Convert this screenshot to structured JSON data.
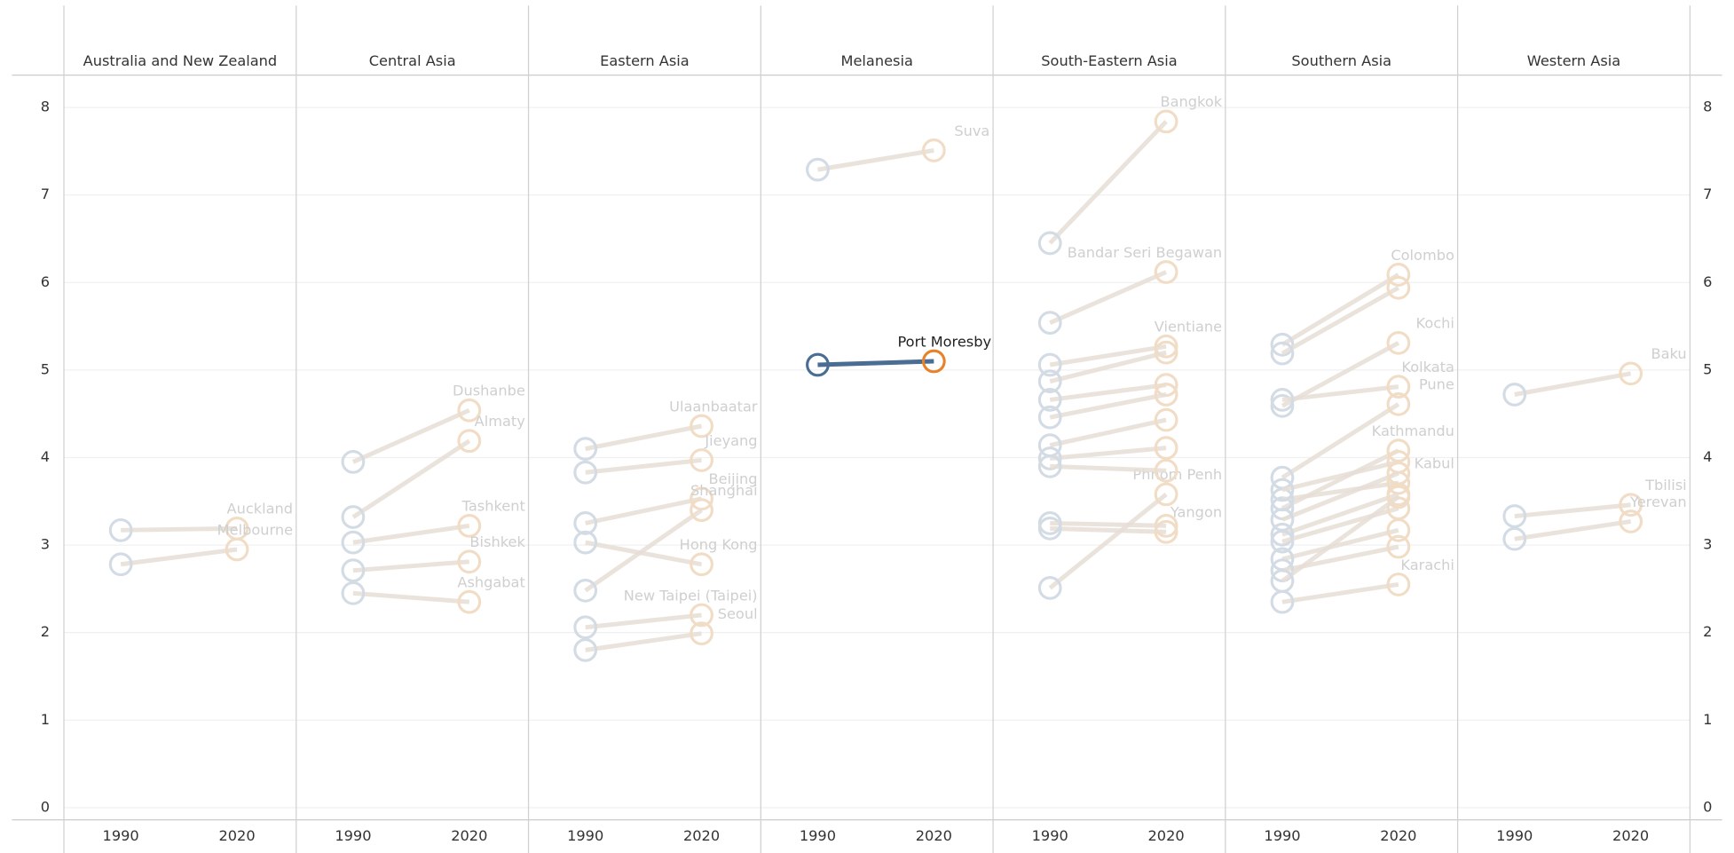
{
  "chart_data": {
    "type": "slope",
    "x": [
      "1990",
      "2020"
    ],
    "ylim": [
      -0.14,
      8.37
    ],
    "yticks": [
      0,
      1,
      2,
      3,
      4,
      5,
      6,
      7,
      8
    ],
    "grid": true,
    "highlight": "Port Moresby",
    "color_start": "#4a6d94",
    "color_end": "#e8822a",
    "faded_start": "#d3dbe4",
    "faded_end": "#f1dcc6",
    "panels": [
      {
        "name": "Australia and New Zealand",
        "series": [
          {
            "name": "Auckland",
            "values": [
              3.17,
              3.19
            ]
          },
          {
            "name": "Melbourne",
            "values": [
              2.78,
              2.95
            ]
          }
        ]
      },
      {
        "name": "Central Asia",
        "series": [
          {
            "name": "Dushanbe",
            "values": [
              3.95,
              4.54
            ]
          },
          {
            "name": "Almaty",
            "values": [
              3.32,
              4.19
            ]
          },
          {
            "name": "Tashkent",
            "values": [
              3.03,
              3.22
            ]
          },
          {
            "name": "Bishkek",
            "values": [
              2.71,
              2.81
            ]
          },
          {
            "name": "Ashgabat",
            "values": [
              2.45,
              2.35
            ]
          }
        ]
      },
      {
        "name": "Eastern Asia",
        "series": [
          {
            "name": "Ulaanbaatar",
            "values": [
              4.1,
              4.36
            ]
          },
          {
            "name": "Jieyang",
            "values": [
              3.83,
              3.97
            ]
          },
          {
            "name": "Beijing",
            "values": [
              3.25,
              3.53
            ]
          },
          {
            "name": "Shanghai",
            "values": [
              2.48,
              3.4
            ]
          },
          {
            "name": "Hong Kong",
            "values": [
              3.03,
              2.78
            ]
          },
          {
            "name": "New Taipei (Taipei)",
            "values": [
              2.06,
              2.2
            ]
          },
          {
            "name": "Seoul",
            "values": [
              1.8,
              1.99
            ]
          }
        ]
      },
      {
        "name": "Melanesia",
        "series": [
          {
            "name": "Suva",
            "values": [
              7.29,
              7.51
            ]
          },
          {
            "name": "Port Moresby",
            "values": [
              5.06,
              5.1
            ]
          }
        ]
      },
      {
        "name": "South-Eastern Asia",
        "series": [
          {
            "name": "Bangkok",
            "values": [
              6.45,
              7.84
            ]
          },
          {
            "name": "Bandar Seri Begawan",
            "values": [
              5.54,
              6.12
            ]
          },
          {
            "name": "Vientiane",
            "values": [
              5.06,
              5.27
            ]
          },
          {
            "name": "Phnom Penh",
            "values": [
              2.51,
              3.58
            ]
          },
          {
            "name": "Yangon",
            "values": [
              3.19,
              3.15
            ]
          },
          {
            "name": null,
            "values": [
              4.87,
              5.2
            ]
          },
          {
            "name": null,
            "values": [
              4.66,
              4.83
            ]
          },
          {
            "name": null,
            "values": [
              4.46,
              4.72
            ]
          },
          {
            "name": null,
            "values": [
              4.14,
              4.43
            ]
          },
          {
            "name": null,
            "values": [
              3.99,
              4.11
            ]
          },
          {
            "name": null,
            "values": [
              3.9,
              3.85
            ]
          },
          {
            "name": null,
            "values": [
              3.25,
              3.22
            ]
          }
        ]
      },
      {
        "name": "Southern Asia",
        "series": [
          {
            "name": "Colombo",
            "values": [
              5.29,
              6.09
            ]
          },
          {
            "name": "Kochi",
            "values": [
              4.59,
              5.31
            ]
          },
          {
            "name": "Kolkata",
            "values": [
              4.66,
              4.81
            ]
          },
          {
            "name": "Pune",
            "values": [
              3.77,
              4.61
            ]
          },
          {
            "name": "Kathmandu",
            "values": [
              3.42,
              4.08
            ]
          },
          {
            "name": "Kabul",
            "values": [
              3.52,
              3.71
            ]
          },
          {
            "name": "Karachi",
            "values": [
              2.35,
              2.55
            ]
          },
          {
            "name": null,
            "values": [
              5.19,
              5.94
            ]
          },
          {
            "name": null,
            "values": [
              3.63,
              3.95
            ]
          },
          {
            "name": null,
            "values": [
              3.29,
              3.82
            ]
          },
          {
            "name": null,
            "values": [
              3.12,
              3.58
            ]
          },
          {
            "name": null,
            "values": [
              3.04,
              3.42
            ]
          },
          {
            "name": null,
            "values": [
              2.84,
              3.17
            ]
          },
          {
            "name": null,
            "values": [
              2.71,
              2.98
            ]
          },
          {
            "name": null,
            "values": [
              2.59,
              3.55
            ]
          }
        ]
      },
      {
        "name": "Western Asia",
        "series": [
          {
            "name": "Baku",
            "values": [
              4.72,
              4.96
            ]
          },
          {
            "name": "Tbilisi",
            "values": [
              3.33,
              3.46
            ]
          },
          {
            "name": "Yerevan",
            "values": [
              3.07,
              3.27
            ]
          }
        ]
      }
    ]
  }
}
